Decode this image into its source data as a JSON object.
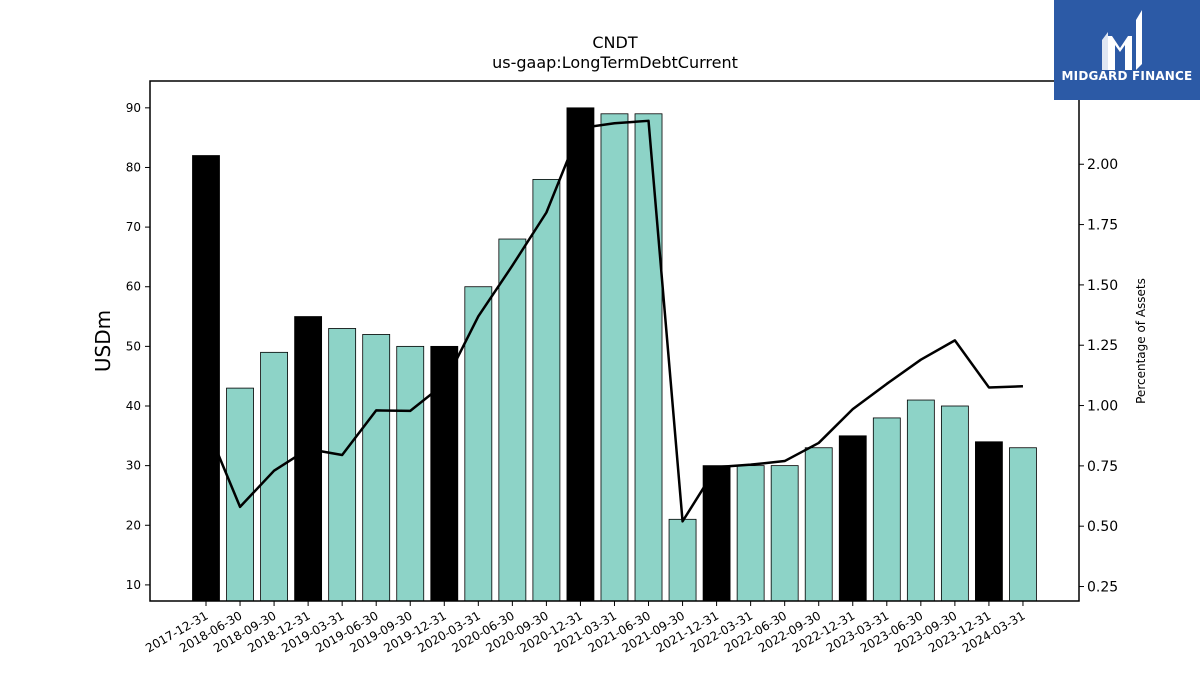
{
  "chart_data": {
    "type": "bar",
    "title": "CNDT",
    "subtitle": "us-gaap:LongTermDebtCurrent",
    "ylabel": "USDm",
    "y2label": "Percentage of Assets",
    "categories": [
      "2017-12-31",
      "2018-06-30",
      "2018-09-30",
      "2018-12-31",
      "2019-03-31",
      "2019-06-30",
      "2019-09-30",
      "2019-12-31",
      "2020-03-31",
      "2020-06-30",
      "2020-09-30",
      "2020-12-31",
      "2021-03-31",
      "2021-06-30",
      "2021-09-30",
      "2021-12-31",
      "2022-03-31",
      "2022-06-30",
      "2022-09-30",
      "2022-12-31",
      "2023-03-31",
      "2023-06-30",
      "2023-09-30",
      "2023-12-31",
      "2024-03-31"
    ],
    "series": [
      {
        "values": [
          82,
          43,
          49,
          55,
          53,
          52,
          50,
          50,
          60,
          68,
          78,
          90,
          89,
          89,
          21,
          30,
          30,
          30,
          33,
          35,
          38,
          41,
          40,
          34,
          33
        ],
        "highlight": [
          true,
          false,
          false,
          true,
          false,
          false,
          false,
          true,
          false,
          false,
          false,
          true,
          false,
          false,
          false,
          true,
          false,
          false,
          false,
          true,
          false,
          false,
          false,
          true,
          false
        ]
      },
      {
        "axis": "right",
        "values": [
          0.92,
          0.58,
          0.73,
          0.82,
          0.795,
          0.98,
          0.978,
          1.09,
          1.37,
          1.58,
          1.8,
          2.15,
          2.17,
          2.18,
          0.52,
          0.745,
          0.755,
          0.77,
          0.845,
          0.985,
          1.09,
          1.19,
          1.27,
          1.075,
          1.08
        ]
      }
    ],
    "ylim": [
      7.3,
      94.5
    ],
    "y_ticks": [
      10,
      20,
      30,
      40,
      50,
      60,
      70,
      80,
      90
    ],
    "y2lim": [
      0.19,
      2.345
    ],
    "y2_ticks": [
      "0.25",
      "0.50",
      "0.75",
      "1.00",
      "1.25",
      "1.50",
      "1.75",
      "2.00"
    ],
    "colors": {
      "bar": "#8dd3c7",
      "bar_highlight": "#000000",
      "line": "#000000"
    },
    "grid": false,
    "legend": "none"
  },
  "logo": {
    "text": "MIDGARD FINANCE",
    "bg": "#2c5aa6"
  }
}
